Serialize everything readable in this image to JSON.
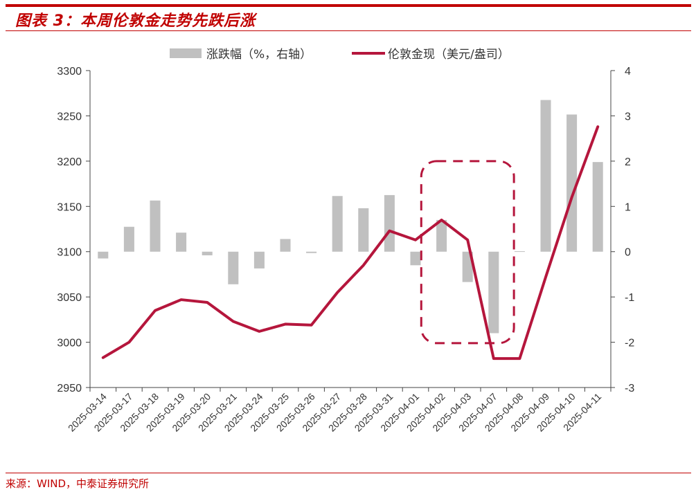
{
  "title": "图表 3：本周伦敦金走势先跌后涨",
  "source": "来源：WIND，中泰证券研究所",
  "colors": {
    "accent": "#C00000",
    "bar": "#C0C0C0",
    "line": "#B5163C"
  },
  "chart_data": {
    "type": "bar+line",
    "categories": [
      "2025-03-14",
      "2025-03-17",
      "2025-03-18",
      "2025-03-19",
      "2025-03-20",
      "2025-03-21",
      "2025-03-24",
      "2025-03-25",
      "2025-03-26",
      "2025-03-27",
      "2025-03-28",
      "2025-03-31",
      "2025-04-01",
      "2025-04-02",
      "2025-04-03",
      "2025-04-07",
      "2025-04-08",
      "2025-04-09",
      "2025-04-10",
      "2025-04-11"
    ],
    "series": [
      {
        "name": "涨跌幅（%，右轴）",
        "type": "bar",
        "axis": "right",
        "values": [
          -0.15,
          0.55,
          1.13,
          0.42,
          -0.08,
          -0.72,
          -0.37,
          0.28,
          -0.03,
          1.23,
          0.96,
          1.25,
          -0.3,
          0.7,
          -0.67,
          -1.8,
          0.01,
          3.35,
          3.03,
          1.98
        ]
      },
      {
        "name": "伦敦金现（美元/盎司）",
        "type": "line",
        "axis": "left",
        "values": [
          2983,
          3000,
          3035,
          3047,
          3044,
          3023,
          3012,
          3020,
          3019,
          3055,
          3085,
          3123,
          3113,
          3135,
          3113,
          2982,
          2982,
          3072,
          3160,
          3238
        ]
      }
    ],
    "y_left": {
      "range": [
        2950,
        3300
      ],
      "ticks": [
        2950,
        3000,
        3050,
        3100,
        3150,
        3200,
        3250,
        3300
      ]
    },
    "y_right": {
      "range": [
        -3,
        4
      ],
      "ticks": [
        -3,
        -2,
        -1,
        0,
        1,
        2,
        3,
        4
      ]
    },
    "legend_position": "top",
    "grid": false,
    "annotation": {
      "shape": "dashed-rounded-rectangle",
      "from_category": "2025-04-02",
      "to_category": "2025-04-07"
    }
  }
}
